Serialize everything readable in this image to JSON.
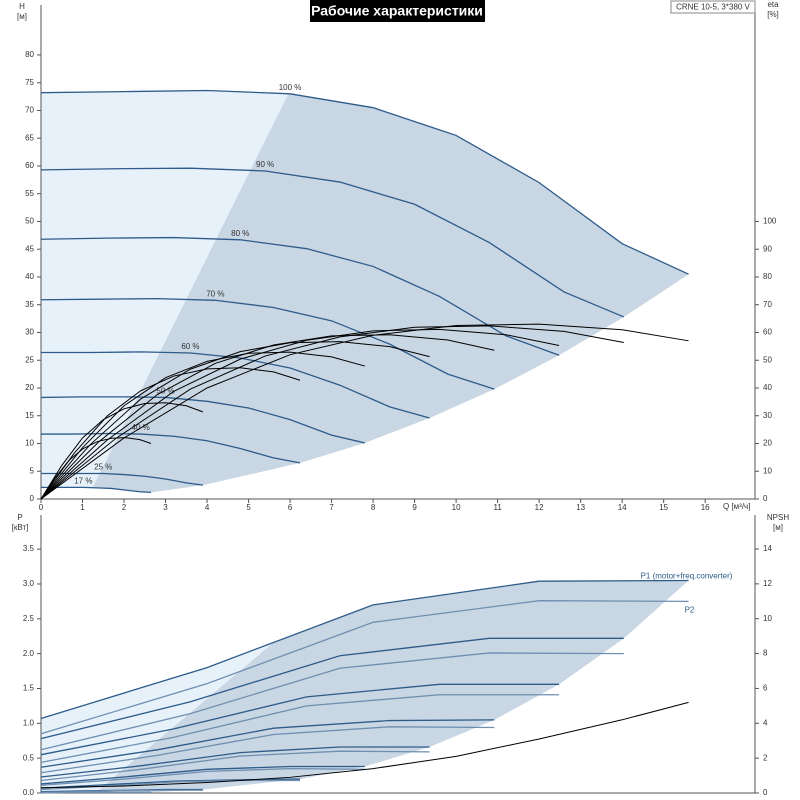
{
  "chart_data": [
    {
      "type": "line",
      "title": "Рабочие характеристики",
      "subtitle": "CRNE 10-5, 3*380 V",
      "x_label": "Q [м³/ч]",
      "y_label": "H",
      "y_unit": "[м]",
      "y2_label": "eta",
      "y2_unit": "[%]",
      "xlim": [
        0,
        17.2
      ],
      "xticks": [
        0,
        1,
        2,
        3,
        4,
        5,
        6,
        7,
        8,
        9,
        10,
        11,
        12,
        13,
        14,
        15,
        16
      ],
      "ylim": [
        0,
        89
      ],
      "yticks": [
        0,
        5,
        10,
        15,
        20,
        25,
        30,
        35,
        40,
        45,
        50,
        55,
        60,
        65,
        70,
        75,
        80
      ],
      "y2lim": [
        0,
        178
      ],
      "y2ticks": [
        0,
        10,
        20,
        30,
        40,
        50,
        60,
        70,
        80,
        90,
        100
      ],
      "fill_colors": [
        "#e7f1fa",
        "#c9d6e3"
      ],
      "series": [
        {
          "name": "100 %",
          "color": "#2d5b8a",
          "x": [
            0,
            2,
            4,
            6,
            8,
            10,
            12,
            14,
            15.6
          ],
          "values": [
            73.2,
            73.4,
            73.6,
            73,
            70.5,
            65.5,
            57,
            46,
            40.5
          ]
        },
        {
          "name": "90 %",
          "color": "#2d5b8a",
          "x": [
            0,
            1.8,
            3.6,
            5.4,
            7.2,
            9,
            10.8,
            12.6,
            14.04
          ],
          "values": [
            59.3,
            59.5,
            59.6,
            59.1,
            57.1,
            53.1,
            46.2,
            37.3,
            32.8
          ]
        },
        {
          "name": "80 %",
          "color": "#2d5b8a",
          "x": [
            0,
            1.6,
            3.2,
            4.8,
            6.4,
            8,
            9.6,
            11.2,
            12.48
          ],
          "values": [
            46.8,
            47,
            47.1,
            46.7,
            45.1,
            41.9,
            36.5,
            29.4,
            25.9
          ]
        },
        {
          "name": "70 %",
          "color": "#2d5b8a",
          "x": [
            0,
            1.4,
            2.8,
            4.2,
            5.6,
            7,
            8.4,
            9.8,
            10.92
          ],
          "values": [
            35.9,
            36,
            36.1,
            35.8,
            34.5,
            32.1,
            27.9,
            22.5,
            19.8
          ]
        },
        {
          "name": "60 %",
          "color": "#2d5b8a",
          "x": [
            0,
            1.2,
            2.4,
            3.6,
            4.8,
            6,
            7.2,
            8.4,
            9.36
          ],
          "values": [
            26.4,
            26.4,
            26.5,
            26.3,
            25.4,
            23.6,
            20.5,
            16.6,
            14.6
          ]
        },
        {
          "name": "50 %",
          "color": "#2d5b8a",
          "x": [
            0,
            1,
            2,
            3,
            4,
            5,
            6,
            7,
            7.8
          ],
          "values": [
            18.3,
            18.4,
            18.4,
            18.3,
            17.6,
            16.4,
            14.3,
            11.5,
            10.1
          ]
        },
        {
          "name": "40 %",
          "color": "#2d5b8a",
          "x": [
            0,
            0.8,
            1.6,
            2.4,
            3.2,
            4,
            4.8,
            5.6,
            6.24
          ],
          "values": [
            11.7,
            11.7,
            11.8,
            11.7,
            11.3,
            10.5,
            9.1,
            7.4,
            6.5
          ]
        },
        {
          "name": "25 %",
          "color": "#2d5b8a",
          "x": [
            0,
            0.5,
            1,
            1.5,
            2,
            2.5,
            3,
            3.5,
            3.9
          ],
          "values": [
            4.6,
            4.6,
            4.6,
            4.6,
            4.4,
            4.1,
            3.6,
            2.9,
            2.5
          ]
        },
        {
          "name": "17 %",
          "color": "#2d5b8a",
          "x": [
            0,
            0.34,
            0.68,
            1.02,
            1.36,
            1.7,
            2.04,
            2.38,
            2.65
          ],
          "values": [
            2.1,
            2.1,
            2.1,
            2.1,
            2,
            1.9,
            1.6,
            1.3,
            1.2
          ]
        },
        {
          "color": "#000000",
          "axis": "y2",
          "x": [
            0,
            2,
            4,
            6,
            8,
            10,
            12,
            14,
            15.6
          ],
          "values": [
            0,
            22,
            40,
            52,
            59,
            62.5,
            63,
            61,
            57
          ]
        },
        {
          "color": "#000000",
          "axis": "y2",
          "x": [
            0,
            1.8,
            3.6,
            5.4,
            7.2,
            9,
            10.8,
            12.6,
            14.04
          ],
          "values": [
            0,
            21.8,
            39.6,
            51.5,
            58.4,
            61.9,
            62.4,
            60.4,
            56.4
          ]
        },
        {
          "color": "#000000",
          "axis": "y2",
          "x": [
            0,
            1.6,
            3.2,
            4.8,
            6.4,
            8,
            9.6,
            11.2,
            12.48
          ],
          "values": [
            0,
            21.3,
            38.8,
            50.4,
            57.2,
            60.6,
            61.1,
            59.2,
            55.3
          ]
        },
        {
          "color": "#000000",
          "axis": "y2",
          "x": [
            0,
            1.4,
            2.8,
            4.2,
            5.6,
            7,
            8.4,
            9.8,
            10.92
          ],
          "values": [
            0,
            20.7,
            37.6,
            48.9,
            55.5,
            58.8,
            59.2,
            57.3,
            53.6
          ]
        },
        {
          "color": "#000000",
          "axis": "y2",
          "x": [
            0,
            1.2,
            2.4,
            3.6,
            4.8,
            6,
            7.2,
            8.4,
            9.36
          ],
          "values": [
            0,
            19.8,
            36,
            46.8,
            53.1,
            56.3,
            56.7,
            54.9,
            51.3
          ]
        },
        {
          "color": "#000000",
          "axis": "y2",
          "x": [
            0,
            1,
            2,
            3,
            4,
            5,
            6,
            7,
            7.8
          ],
          "values": [
            0,
            18.5,
            33.6,
            43.7,
            49.6,
            52.5,
            52.9,
            51.2,
            47.9
          ]
        },
        {
          "color": "#000000",
          "axis": "y2",
          "x": [
            0,
            0.8,
            1.6,
            2.4,
            3.2,
            4,
            4.8,
            5.6,
            6.24
          ],
          "values": [
            0,
            16.5,
            30,
            39,
            44.3,
            46.9,
            47.3,
            45.8,
            42.8
          ]
        },
        {
          "color": "#000000",
          "axis": "y2",
          "x": [
            0,
            0.5,
            1,
            1.5,
            2,
            2.5,
            3,
            3.5,
            3.9
          ],
          "values": [
            0,
            12.1,
            22,
            28.6,
            32.5,
            34.4,
            34.7,
            33.6,
            31.4
          ]
        },
        {
          "color": "#000000",
          "axis": "y2",
          "x": [
            0,
            0.34,
            0.68,
            1.02,
            1.36,
            1.7,
            2.04,
            2.38,
            2.65
          ],
          "values": [
            0,
            7.7,
            14,
            18.2,
            20.7,
            21.9,
            22.1,
            21.4,
            20
          ]
        }
      ]
    },
    {
      "type": "line",
      "y_label": "P",
      "y_unit": "[кВт]",
      "y2_label": "NPSH",
      "y2_unit": "[м]",
      "xlim": [
        0,
        17.2
      ],
      "ylim": [
        0,
        3.99
      ],
      "yticks": [
        {
          "value": 0,
          "label": "0.0"
        },
        {
          "value": 0.5,
          "label": "0.5"
        },
        {
          "value": 1,
          "label": "1.0"
        },
        {
          "value": 1.5,
          "label": "1.5"
        },
        {
          "value": 2,
          "label": "2.0"
        },
        {
          "value": 2.5,
          "label": "2.5"
        },
        {
          "value": 3,
          "label": "3.0"
        },
        {
          "value": 3.5,
          "label": "3.5"
        }
      ],
      "y2lim": [
        0,
        15.95
      ],
      "y2ticks": [
        0,
        2,
        4,
        6,
        8,
        10,
        12,
        14
      ],
      "fill_colors": [
        "#e7f1fa",
        "#c9d6e3"
      ],
      "series": [
        {
          "name": "P1 (motor+freq.converter)",
          "color": "#2d5b8a",
          "x": [
            0,
            4,
            8,
            12,
            15.6
          ],
          "values": [
            1.07,
            1.8,
            2.7,
            3.04,
            3.05
          ]
        },
        {
          "color": "#2d5b8a",
          "x": [
            0,
            3.6,
            7.2,
            10.8,
            14.04
          ],
          "values": [
            0.78,
            1.31,
            1.97,
            2.22,
            2.22
          ]
        },
        {
          "color": "#2d5b8a",
          "x": [
            0,
            3.2,
            6.4,
            9.6,
            12.48
          ],
          "values": [
            0.55,
            0.92,
            1.38,
            1.56,
            1.56
          ]
        },
        {
          "color": "#2d5b8a",
          "x": [
            0,
            2.8,
            5.6,
            8.4,
            10.92
          ],
          "values": [
            0.37,
            0.62,
            0.93,
            1.04,
            1.05
          ]
        },
        {
          "color": "#2d5b8a",
          "x": [
            0,
            2.4,
            4.8,
            7.2,
            9.36
          ],
          "values": [
            0.23,
            0.39,
            0.58,
            0.66,
            0.66
          ]
        },
        {
          "color": "#2d5b8a",
          "x": [
            0,
            2,
            4,
            6,
            7.8
          ],
          "values": [
            0.13,
            0.23,
            0.34,
            0.38,
            0.38
          ]
        },
        {
          "color": "#2d5b8a",
          "x": [
            0,
            1.6,
            3.2,
            4.8,
            6.24
          ],
          "values": [
            0.07,
            0.12,
            0.17,
            0.19,
            0.2
          ]
        },
        {
          "color": "#2d5b8a",
          "x": [
            0,
            1,
            2,
            3,
            3.9
          ],
          "values": [
            0.02,
            0.03,
            0.04,
            0.05,
            0.05
          ]
        },
        {
          "color": "#2d5b8a",
          "x": [
            0,
            0.68,
            1.36,
            2.04,
            2.65
          ],
          "values": [
            0.01,
            0.01,
            0.01,
            0.01,
            0.01
          ]
        },
        {
          "name": "P2",
          "color": "#6f8fb1",
          "x": [
            0,
            4,
            8,
            12,
            15.6
          ],
          "values": [
            0.85,
            1.57,
            2.45,
            2.76,
            2.75
          ]
        },
        {
          "color": "#6f8fb1",
          "x": [
            0,
            3.6,
            7.2,
            10.8,
            14.04
          ],
          "values": [
            0.62,
            1.14,
            1.79,
            2.01,
            2
          ]
        },
        {
          "color": "#6f8fb1",
          "x": [
            0,
            3.2,
            6.4,
            9.6,
            12.48
          ],
          "values": [
            0.44,
            0.8,
            1.25,
            1.41,
            1.41
          ]
        },
        {
          "color": "#6f8fb1",
          "x": [
            0,
            2.8,
            5.6,
            8.4,
            10.92
          ],
          "values": [
            0.29,
            0.54,
            0.84,
            0.95,
            0.94
          ]
        },
        {
          "color": "#6f8fb1",
          "x": [
            0,
            2.4,
            4.8,
            7.2,
            9.36
          ],
          "values": [
            0.18,
            0.34,
            0.53,
            0.6,
            0.59
          ]
        },
        {
          "color": "#6f8fb1",
          "x": [
            0,
            2,
            4,
            6,
            7.8
          ],
          "values": [
            0.11,
            0.2,
            0.31,
            0.35,
            0.34
          ]
        },
        {
          "color": "#6f8fb1",
          "x": [
            0,
            1.6,
            3.2,
            4.8,
            6.24
          ],
          "values": [
            0.05,
            0.1,
            0.16,
            0.18,
            0.18
          ]
        },
        {
          "color": "#6f8fb1",
          "x": [
            0,
            1,
            2,
            3,
            3.9
          ],
          "values": [
            0.01,
            0.02,
            0.04,
            0.04,
            0.04
          ]
        },
        {
          "color": "#6f8fb1",
          "x": [
            0,
            0.68,
            1.36,
            2.04,
            2.65
          ],
          "values": [
            0,
            0.01,
            0.01,
            0.01,
            0.01
          ]
        },
        {
          "color": "#000000",
          "axis": "y2",
          "x": [
            0,
            2,
            4,
            6,
            8,
            10,
            12,
            14,
            15.6
          ],
          "values": [
            0.3,
            0.4,
            0.6,
            0.9,
            1.4,
            2.1,
            3.1,
            4.2,
            5.2
          ]
        }
      ]
    }
  ]
}
